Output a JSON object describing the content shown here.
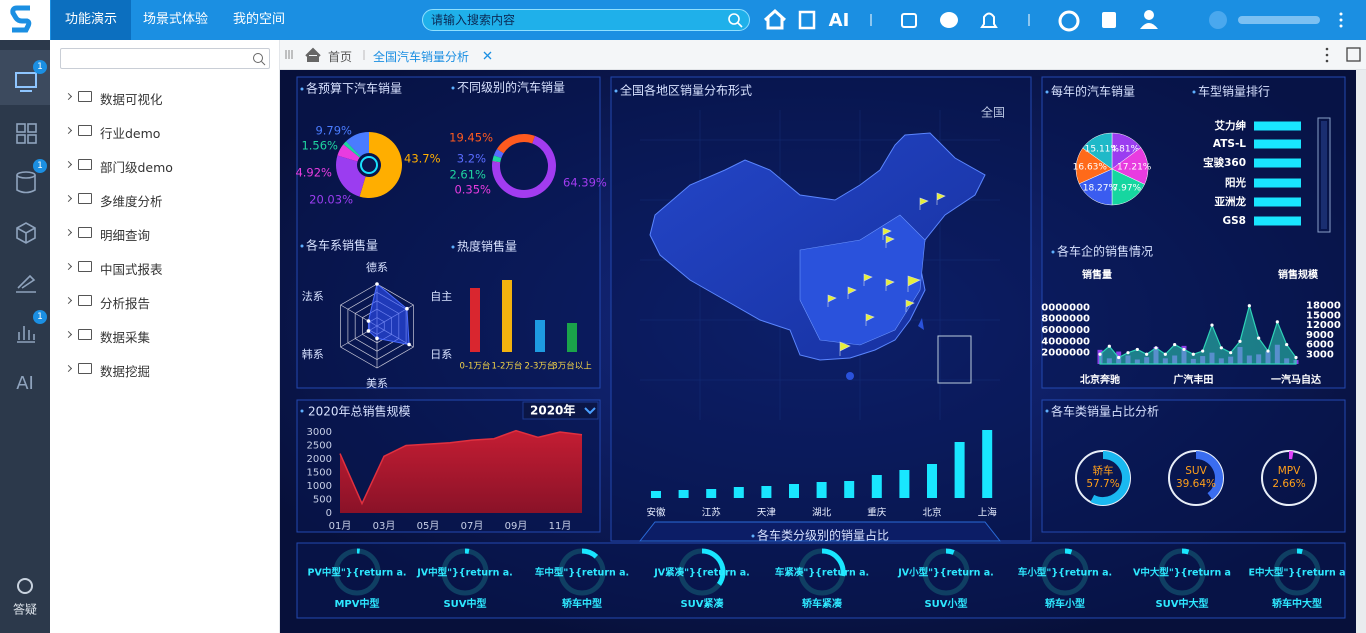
{
  "nav": {
    "tabs": [
      "功能演示",
      "场景式体验",
      "我的空间"
    ],
    "search_placeholder": "请输入搜索内容",
    "ai": "AI"
  },
  "sidebar": {
    "badges": [
      "1",
      "1",
      "1"
    ],
    "ai": "AI",
    "help": "答疑"
  },
  "tree": {
    "items": [
      "数据可视化",
      "行业demo",
      "部门级demo",
      "多维度分析",
      "明细查询",
      "中国式报表",
      "分析报告",
      "数据采集",
      "数据挖掘"
    ]
  },
  "tabbar": {
    "home": "首页",
    "active_tab": "全国汽车销量分析"
  },
  "dashboard": {
    "budget": {
      "type": "pie",
      "title": "各预算下汽车销量",
      "values": [
        43.7,
        20.03,
        4.92,
        1.56,
        9.79
      ],
      "value_labels": [
        "43.7%",
        "20.03%",
        "4.92%",
        "1.56%",
        "9.79%"
      ],
      "colors": [
        "#ffae00",
        "#9b3df0",
        "#e83ce0",
        "#1fd6a0",
        "#4a7cff"
      ]
    },
    "level": {
      "type": "pie",
      "title": "不同级别的汽车销量",
      "values": [
        64.39,
        0.35,
        2.61,
        3.2,
        19.45
      ],
      "value_labels": [
        "64.39%",
        "0.35%",
        "2.61%",
        "3.2%",
        "19.45%"
      ],
      "colors": [
        "#a23cf0",
        "#e83ce0",
        "#1fd6a0",
        "#5a6cff",
        "#ff5a1f"
      ]
    },
    "radar": {
      "type": "radar",
      "title": "各车系销售量",
      "indicators": [
        "德系",
        "自主",
        "日系",
        "美系",
        "韩系",
        "法系"
      ],
      "values": [
        85,
        70,
        75,
        25,
        20,
        20
      ],
      "color": "#2f52ff"
    },
    "heat": {
      "type": "bar",
      "title": "热度销售量",
      "categories": [
        "0-1万台",
        "1-2万台",
        "2-3万台",
        "3万台以上"
      ],
      "values": [
        64,
        72,
        32,
        29
      ],
      "colors": [
        "#d9262f",
        "#f2b20f",
        "#1e9be0",
        "#1aa34a"
      ]
    },
    "annual": {
      "type": "area",
      "title": "2020年总销售规模",
      "selector": "2020年",
      "categories": [
        "01月",
        null,
        "03月",
        null,
        "05月",
        null,
        "07月",
        null,
        "09月",
        null,
        "11月",
        null
      ],
      "values": [
        2200,
        350,
        2100,
        2500,
        2550,
        2600,
        2700,
        2750,
        3050,
        2800,
        3000,
        2900
      ],
      "ylim": [
        0,
        3000
      ],
      "yticks": [
        0,
        500,
        1000,
        1500,
        2000,
        2500,
        3000
      ],
      "color": "#e0303f"
    },
    "map": {
      "type": "map",
      "title": "全国各地区销量分布形式",
      "scope": "全国",
      "categories": [
        "安徽",
        null,
        "江苏",
        null,
        "天津",
        null,
        "湖北",
        null,
        "重庆",
        null,
        "北京",
        null,
        "上海"
      ],
      "values": [
        7,
        8,
        9,
        11,
        12,
        14,
        16,
        17,
        23,
        28,
        34,
        56,
        68
      ],
      "color": "#19e6ff"
    },
    "yearly": {
      "type": "pie",
      "title": "每年的汽车销量",
      "values": [
        14.81,
        17.21,
        17.97,
        18.27,
        16.63,
        15.11
      ],
      "value_labels": [
        "14.81%",
        "17.21%",
        "17.97%",
        "18.27%",
        "16.63%",
        "15.11%"
      ],
      "colors": [
        "#9b3df0",
        "#e83ce0",
        "#16d6a0",
        "#3a5cf0",
        "#ff6a1a",
        "#1fb9c8"
      ]
    },
    "ranking": {
      "type": "bar",
      "title": "车型销量排行",
      "categories": [
        "艾力绅",
        "ATS-L",
        "宝骏360",
        "阳光",
        "亚洲龙",
        "GS8"
      ],
      "values": [
        100,
        100,
        100,
        100,
        100,
        100
      ],
      "color": "#19e6ff"
    },
    "makers": {
      "type": "combo",
      "title": "各车企的销售情况",
      "categories": [
        "北京奔驰",
        null,
        null,
        null,
        null,
        null,
        null,
        null,
        null,
        null,
        "广汽丰田",
        null,
        null,
        null,
        null,
        null,
        null,
        null,
        null,
        null,
        null,
        "一汽马自达"
      ],
      "series": [
        {
          "name": "销售量",
          "color": "#8c3de8",
          "values": [
            2500000,
            1000000,
            2200000,
            1500000,
            800000,
            1200000,
            3000000,
            1000000,
            1500000,
            3200000,
            900000,
            1400000,
            2000000,
            1000000,
            1300000,
            3000000,
            1500000,
            1700000,
            2200000,
            3400000,
            1000000,
            700000
          ]
        },
        {
          "name": "销售规模",
          "color": "#2ed3b7",
          "axis": "y2",
          "values": [
            3000,
            5500,
            2000,
            3500,
            4500,
            3000,
            5000,
            3000,
            6000,
            4500,
            3000,
            4000,
            12000,
            5000,
            3500,
            7000,
            18000,
            8000,
            4000,
            13000,
            6000,
            2000
          ]
        }
      ],
      "ylim": [
        0,
        12000000
      ],
      "yticks": [
        2000000,
        4000000,
        6000000,
        8000000,
        {
          "value": 10000000,
          "label": "0000000"
        }
      ],
      "y2lim": [
        0,
        21000
      ],
      "y2ticks": [
        3000,
        6000,
        9000,
        12000,
        15000,
        18000
      ]
    },
    "class_share": {
      "type": "gauge",
      "title": "各车类销量占比分析",
      "categories": [
        "轿车",
        "SUV",
        "MPV"
      ],
      "values": [
        57.7,
        39.64,
        2.66
      ],
      "value_labels": [
        "57.7%",
        "39.64%",
        "2.66%"
      ],
      "colors": [
        "#1ab8f0",
        "#3a6df0",
        "#e040fb"
      ]
    },
    "sub_share": {
      "type": "gauge",
      "title": "各车类分级别的销量占比",
      "labels": [
        "PV中型\"}{return a.",
        "JV中型\"}{return a.",
        "车中型\"}{return a.",
        "JV紧凑\"}{return a.",
        "车紧凑\"}{return a.",
        "JV小型\"}{return a.",
        "车小型\"}{return a.",
        "V中大型\"}{return a",
        "E中大型\"}{return a"
      ],
      "categories": [
        "MPV中型",
        "SUV中型",
        "轿车中型",
        "SUV紧凑",
        "轿车紧凑",
        "SUV小型",
        "轿车小型",
        "SUV中大型",
        "轿车中大型"
      ],
      "values": [
        2,
        3,
        12,
        35,
        28,
        6,
        5,
        5,
        4
      ],
      "color": "#19e6ff"
    }
  }
}
